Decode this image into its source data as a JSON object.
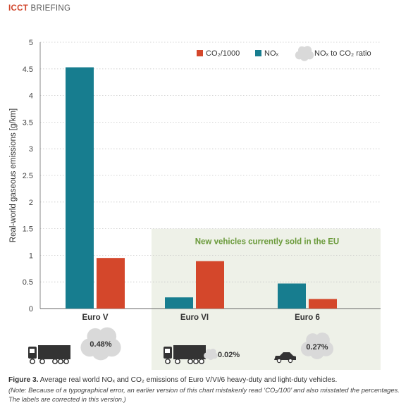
{
  "header": {
    "brand": "ICCT",
    "kind": "BRIEFING"
  },
  "colors": {
    "co2": "#d4472b",
    "nox": "#177d8f",
    "shade": "#eef1e8",
    "cloud": "#d9d9d9",
    "grid": "#c8c8c8",
    "accent": "#6a9a3a"
  },
  "chart_data": {
    "type": "bar",
    "categories": [
      "Euro V",
      "Euro VI",
      "Euro 6"
    ],
    "series": [
      {
        "name": "NOx",
        "values": [
          4.53,
          0.21,
          0.47
        ]
      },
      {
        "name": "CO2/1000",
        "values": [
          0.95,
          0.89,
          0.18
        ]
      }
    ],
    "ratios": [
      "0.48%",
      "0.02%",
      "0.27%"
    ],
    "ylabel": "Real-world gaseous emissions [g/km]",
    "ylim": [
      0,
      5
    ],
    "yticks": [
      "0",
      "0.5",
      "1",
      "1.5",
      "2",
      "2.5",
      "3",
      "3.5",
      "4",
      "4.5",
      "5"
    ],
    "ytick_values": [
      0,
      0.5,
      1,
      1.5,
      2,
      2.5,
      3,
      3.5,
      4,
      4.5,
      5
    ],
    "grid": true,
    "legend_position": "top-right",
    "shaded_region_label": "New vehicles currently sold in the EU",
    "legend": {
      "co2": "CO₂/1000",
      "nox": "NOₓ",
      "ratio": "NOₓ to CO₂ ratio"
    }
  },
  "caption": {
    "label": "Figure 3.",
    "text": "Average real world NOₓ and CO₂ emissions of Euro V/VI/6 heavy-duty and light-duty vehicles.",
    "note": "(Note: Because of a typographical error, an earlier version of this chart mistakenly read ‘CO₂/100’ and also misstated the percentages. The labels are corrected in this version.)"
  }
}
